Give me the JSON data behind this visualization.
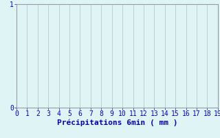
{
  "title": "",
  "xlabel": "Précipitations 6min ( mm )",
  "xlim": [
    0,
    19
  ],
  "ylim": [
    0,
    1
  ],
  "xticks": [
    0,
    1,
    2,
    3,
    4,
    5,
    6,
    7,
    8,
    9,
    10,
    11,
    12,
    13,
    14,
    15,
    16,
    17,
    18,
    19
  ],
  "yticks": [
    0,
    1
  ],
  "background_color": "#dff4f4",
  "grid_color": "#b8c8c8",
  "spine_color": "#9999aa",
  "tick_label_color": "#0000cc",
  "xlabel_color": "#0000cc",
  "xlabel_fontsize": 8,
  "tick_fontsize": 7
}
